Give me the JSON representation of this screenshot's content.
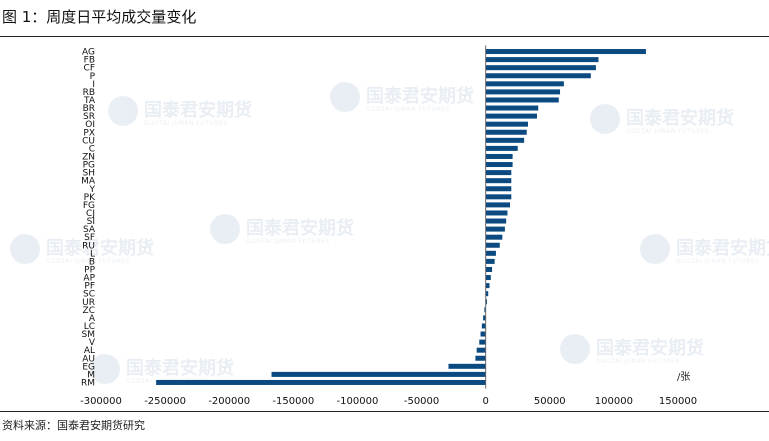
{
  "title": "图 1：周度日平均成交量变化",
  "source": "资料来源：国泰君安期货研究",
  "watermark": {
    "text": "国泰君安期货",
    "subtext": "GUOTAI JUNAN FUTURES"
  },
  "chart_data": {
    "type": "bar",
    "orientation": "horizontal",
    "unit_label": "/张",
    "color": "#0b4a80",
    "xlim": [
      -300000,
      150000
    ],
    "xticks": [
      -300000,
      -250000,
      -200000,
      -150000,
      -100000,
      -50000,
      0,
      50000,
      100000,
      150000
    ],
    "tick_labels": [
      "-300000",
      "-250000",
      "-200000",
      "-150000",
      "-100000",
      "-50000",
      "0",
      "50000",
      "100000",
      "150000"
    ],
    "categories": [
      "AG",
      "FB",
      "CF",
      "P",
      "I",
      "RB",
      "TA",
      "BR",
      "SR",
      "OI",
      "PX",
      "CU",
      "C",
      "ZN",
      "PG",
      "SH",
      "MA",
      "Y",
      "PK",
      "FG",
      "CJ",
      "SI",
      "SA",
      "SF",
      "RU",
      "L",
      "B",
      "PP",
      "AP",
      "PF",
      "SC",
      "UR",
      "ZC",
      "A",
      "LC",
      "SM",
      "V",
      "AL",
      "AU",
      "EG",
      "M",
      "RM"
    ],
    "values": [
      125000,
      88000,
      86000,
      82000,
      61000,
      58000,
      57000,
      41000,
      40000,
      33000,
      32000,
      30000,
      25000,
      21000,
      21000,
      20000,
      20000,
      20000,
      20000,
      19000,
      17000,
      16000,
      15000,
      13000,
      11000,
      8000,
      7000,
      5000,
      4000,
      3000,
      2000,
      1000,
      -1000,
      -2000,
      -3000,
      -4000,
      -5000,
      -7000,
      -8000,
      -29000,
      -167000,
      -257000
    ]
  }
}
